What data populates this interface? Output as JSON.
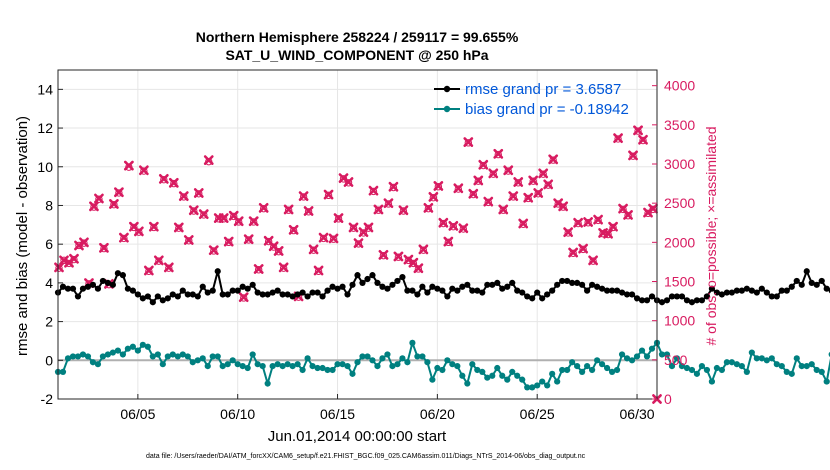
{
  "chart_data": {
    "type": "line",
    "title_line1": "Northern Hemisphere 258224 / 259117 = 99.655%",
    "title_line2": "SAT_U_WIND_COMPONENT @ 250 hPa",
    "xlabel": "Jun.01,2014 00:00:00 start",
    "ylabel_left": "rmse and bias (model - observation)",
    "ylabel_right": "# of obs: o=possible; ×=assimilated",
    "footnote": "data file: /Users/raeder/DAI/ATM_forcXX/CAM6_setup/f.e21.FHIST_BGC.f09_025.CAM6assim.011/Diags_NTrS_2014-06/obs_diag_output.nc",
    "xlim": [
      1.0,
      31.0
    ],
    "ylim_left": [
      -2,
      15
    ],
    "ylim_right": [
      0,
      4200
    ],
    "x_ticks": [
      {
        "value": 5,
        "label": "06/05"
      },
      {
        "value": 10,
        "label": "06/10"
      },
      {
        "value": 15,
        "label": "06/15"
      },
      {
        "value": 20,
        "label": "06/20"
      },
      {
        "value": 25,
        "label": "06/25"
      },
      {
        "value": 30,
        "label": "06/30"
      }
    ],
    "y_left_ticks": [
      {
        "value": -2,
        "label": "-2"
      },
      {
        "value": 0,
        "label": "0"
      },
      {
        "value": 2,
        "label": "2"
      },
      {
        "value": 4,
        "label": "4"
      },
      {
        "value": 6,
        "label": "6"
      },
      {
        "value": 8,
        "label": "8"
      },
      {
        "value": 10,
        "label": "10"
      },
      {
        "value": 12,
        "label": "12"
      },
      {
        "value": 14,
        "label": "14"
      }
    ],
    "y_right_ticks": [
      {
        "value": 0,
        "label": "0"
      },
      {
        "value": 500,
        "label": "500"
      },
      {
        "value": 1000,
        "label": "1000"
      },
      {
        "value": 1500,
        "label": "1500"
      },
      {
        "value": 2000,
        "label": "2000"
      },
      {
        "value": 2500,
        "label": "2500"
      },
      {
        "value": 3000,
        "label": "3000"
      },
      {
        "value": 3500,
        "label": "3500"
      },
      {
        "value": 4000,
        "label": "4000"
      }
    ],
    "legend": [
      {
        "name": "rmse grand pr = 3.6587",
        "color": "#000000"
      },
      {
        "name": "bias grand pr = -0.18942",
        "color": "#008080"
      }
    ],
    "colors": {
      "rmse": "#000000",
      "bias": "#008080",
      "obs": "#d81b60",
      "zero_line": "#b0b0b0",
      "legend_text": "#0057d9",
      "right_axis": "#d81b60"
    },
    "x_start": 1.0,
    "x_step": 0.25,
    "series": [
      {
        "name": "rmse",
        "values": [
          3.5,
          3.8,
          3.7,
          3.7,
          3.3,
          3.7,
          3.8,
          3.9,
          3.7,
          4.1,
          4.0,
          3.9,
          4.5,
          4.4,
          3.7,
          3.6,
          3.4,
          3.2,
          3.3,
          3.0,
          3.3,
          3.1,
          3.2,
          3.4,
          3.3,
          3.6,
          3.4,
          3.4,
          3.3,
          3.8,
          3.5,
          3.6,
          4.6,
          3.4,
          3.4,
          3.6,
          3.6,
          3.8,
          3.7,
          3.9,
          3.5,
          3.4,
          3.4,
          3.5,
          3.6,
          3.4,
          3.4,
          3.3,
          3.4,
          3.5,
          3.3,
          3.5,
          3.5,
          3.3,
          3.6,
          3.8,
          3.7,
          3.8,
          3.4,
          3.9,
          4.4,
          4.0,
          4.2,
          4.4,
          4.0,
          3.8,
          3.7,
          3.9,
          4.1,
          4.3,
          3.6,
          3.6,
          3.4,
          3.8,
          3.5,
          3.8,
          3.7,
          3.6,
          3.3,
          3.7,
          3.6,
          3.8,
          3.9,
          3.6,
          3.6,
          3.5,
          3.9,
          3.9,
          4.0,
          3.7,
          3.8,
          4.0,
          3.6,
          3.5,
          3.3,
          3.2,
          3.5,
          3.2,
          3.4,
          3.6,
          3.9,
          4.1,
          4.1,
          4.0,
          4.0,
          3.9,
          3.6,
          3.9,
          3.8,
          3.7,
          3.6,
          3.6,
          3.6,
          3.5,
          3.4,
          3.4,
          3.2,
          3.1,
          3.1,
          3.3,
          3.1,
          3.0,
          3.1,
          3.3,
          3.3,
          3.3,
          3.1,
          3.0,
          3.1,
          3.1,
          3.3,
          3.7,
          3.5,
          3.4,
          3.5,
          3.5,
          3.6,
          3.6,
          3.7,
          3.6,
          3.5,
          3.7,
          3.5,
          3.3,
          3.3,
          3.6,
          3.6,
          3.8,
          4.1,
          3.9,
          4.6,
          4.0,
          3.9,
          4.1,
          3.7,
          3.6,
          4.1,
          3.9,
          4.3,
          4.5,
          4.5,
          4.4,
          4.1,
          3.8,
          3.9,
          3.7,
          3.5,
          3.7,
          3.7,
          3.6,
          3.7
        ]
      },
      {
        "name": "bias",
        "values": [
          -0.6,
          -0.6,
          0.1,
          0.2,
          0.2,
          0.3,
          0.2,
          -0.1,
          -0.2,
          0.2,
          0.3,
          0.4,
          0.5,
          0.3,
          0.6,
          0.7,
          0.5,
          0.8,
          0.7,
          0.2,
          0.3,
          -0.2,
          0.2,
          0.3,
          0.2,
          0.3,
          0.2,
          -0.1,
          0.0,
          0.1,
          -0.3,
          0.2,
          0.2,
          -0.3,
          -0.2,
          0.0,
          -0.2,
          -0.3,
          -0.4,
          0.3,
          -0.2,
          -0.3,
          -1.2,
          -0.3,
          -0.2,
          -0.3,
          -0.2,
          -0.3,
          -0.2,
          -0.5,
          0.1,
          -0.3,
          -0.4,
          -0.4,
          -0.5,
          -0.5,
          -0.2,
          -0.2,
          -0.3,
          -0.7,
          -0.1,
          0.2,
          0.2,
          0.0,
          -0.3,
          0.1,
          0.3,
          -0.3,
          -0.2,
          0.1,
          -0.1,
          0.9,
          0.2,
          0.2,
          -0.1,
          -1.0,
          -0.4,
          -0.5,
          0.0,
          -0.2,
          -0.3,
          -0.8,
          -1.2,
          -0.2,
          -0.5,
          -0.6,
          -0.9,
          -0.8,
          -0.4,
          -0.8,
          -1.0,
          -0.6,
          -0.8,
          -1.0,
          -1.4,
          -1.4,
          -1.3,
          -1.1,
          -1.3,
          -0.7,
          -1.1,
          -0.5,
          -0.5,
          -0.1,
          -0.3,
          -0.6,
          -0.3,
          -0.5,
          0.0,
          -0.2,
          -0.4,
          -0.6,
          -0.5,
          0.3,
          0.1,
          0.0,
          0.2,
          0.5,
          0.2,
          0.6,
          0.9,
          0.3,
          0.3,
          -0.3,
          0.1,
          -0.3,
          -0.4,
          -0.5,
          -0.7,
          -0.3,
          -0.5,
          -1.1,
          -0.4,
          -0.5,
          -0.1,
          -0.1,
          -0.2,
          -0.3,
          -0.6,
          0.4,
          0.1,
          0.1,
          0.0,
          0.1,
          -0.2,
          -0.3,
          -0.6,
          -0.7,
          0.1,
          -0.3,
          -0.3,
          -0.2,
          -0.5,
          -0.6,
          -1.1,
          0.3,
          -0.3,
          -0.2,
          -0.6,
          -0.7,
          -0.6,
          -0.5,
          -0.3,
          -0.9,
          -0.5,
          -0.5,
          -0.6,
          -0.1,
          0.2,
          -0.1,
          -0.2,
          -0.1
        ]
      },
      {
        "name": "obs_possible",
        "x": [
          1.05,
          1.3,
          1.55,
          1.8,
          2.05,
          2.3,
          2.55,
          2.8,
          3.05,
          3.3,
          3.55,
          3.8,
          4.05,
          4.3,
          4.55,
          4.8,
          5.05,
          5.3,
          5.55,
          5.8,
          6.05,
          6.3,
          6.55,
          6.8,
          7.05,
          7.3,
          7.55,
          7.8,
          8.05,
          8.3,
          8.55,
          8.8,
          9.05,
          9.3,
          9.55,
          9.8,
          10.05,
          10.3,
          10.55,
          10.8,
          11.05,
          11.3,
          11.55,
          11.8,
          12.05,
          12.3,
          12.55,
          12.8,
          13.05,
          13.3,
          13.55,
          13.8,
          14.05,
          14.3,
          14.55,
          14.8,
          15.05,
          15.3,
          15.55,
          15.8,
          16.05,
          16.3,
          16.55,
          16.8,
          17.05,
          17.3,
          17.55,
          17.8,
          18.05,
          18.3,
          18.55,
          18.8,
          19.05,
          19.3,
          19.55,
          19.8,
          20.05,
          20.3,
          20.55,
          20.8,
          21.05,
          21.3,
          21.55,
          21.8,
          22.05,
          22.3,
          22.55,
          22.8,
          23.05,
          23.3,
          23.55,
          23.8,
          24.05,
          24.3,
          24.55,
          24.8,
          25.05,
          25.3,
          25.55,
          25.8,
          26.05,
          26.3,
          26.55,
          26.8,
          27.05,
          27.3,
          27.55,
          27.8,
          28.05,
          28.3,
          28.55,
          28.8,
          29.05,
          29.3,
          29.55,
          29.8,
          30.05,
          30.3,
          30.55,
          30.8
        ],
        "values": [
          1670,
          1770,
          1730,
          1780,
          1960,
          1990,
          1470,
          2450,
          2550,
          1920,
          1460,
          2480,
          2630,
          2050,
          2960,
          2190,
          2130,
          2910,
          1630,
          2190,
          1760,
          2800,
          1670,
          2750,
          2180,
          2580,
          2020,
          2400,
          2620,
          2350,
          3030,
          1890,
          2300,
          2300,
          2000,
          2330,
          2260,
          1290,
          2030,
          2260,
          1650,
          2430,
          2010,
          1940,
          1880,
          1670,
          2410,
          2150,
          1300,
          2580,
          2390,
          1900,
          1630,
          2050,
          2600,
          2040,
          2300,
          2810,
          2760,
          2180,
          1980,
          2120,
          2180,
          2650,
          2410,
          1830,
          2490,
          2700,
          1810,
          2400,
          1770,
          1730,
          1660,
          1900,
          2430,
          2570,
          2710,
          2240,
          2000,
          2200,
          2680,
          2170,
          3270,
          2610,
          2780,
          2980,
          2510,
          2870,
          3120,
          2410,
          2910,
          2580,
          2760,
          2230,
          2560,
          2780,
          2620,
          2870,
          2730,
          3050,
          2490,
          2450,
          2120,
          1860,
          2240,
          1910,
          2250,
          1760,
          2280,
          2110,
          2100,
          2190,
          3320,
          2420,
          2340,
          3100,
          3420,
          3300,
          2370,
          2420
        ]
      },
      {
        "name": "obs_assimilated",
        "x": [
          1.05,
          1.3,
          1.55,
          1.8,
          2.05,
          2.3,
          2.55,
          2.8,
          3.05,
          3.3,
          3.55,
          3.8,
          4.05,
          4.3,
          4.55,
          4.8,
          5.05,
          5.3,
          5.55,
          5.8,
          6.05,
          6.3,
          6.55,
          6.8,
          7.05,
          7.3,
          7.55,
          7.8,
          8.05,
          8.3,
          8.55,
          8.8,
          9.05,
          9.3,
          9.55,
          9.8,
          10.05,
          10.3,
          10.55,
          10.8,
          11.05,
          11.3,
          11.55,
          11.8,
          12.05,
          12.3,
          12.55,
          12.8,
          13.05,
          13.3,
          13.55,
          13.8,
          14.05,
          14.3,
          14.55,
          14.8,
          15.05,
          15.3,
          15.55,
          15.8,
          16.05,
          16.3,
          16.55,
          16.8,
          17.05,
          17.3,
          17.55,
          17.8,
          18.05,
          18.3,
          18.55,
          18.8,
          19.05,
          19.3,
          19.55,
          19.8,
          20.05,
          20.3,
          20.55,
          20.8,
          21.05,
          21.3,
          21.55,
          21.8,
          22.05,
          22.3,
          22.55,
          22.8,
          23.05,
          23.3,
          23.55,
          23.8,
          24.05,
          24.3,
          24.55,
          24.8,
          25.05,
          25.3,
          25.55,
          25.8,
          26.05,
          26.3,
          26.55,
          26.8,
          27.05,
          27.3,
          27.55,
          27.8,
          28.05,
          28.3,
          28.55,
          28.8,
          29.05,
          29.3,
          29.55,
          29.8,
          30.05,
          30.3,
          30.55,
          30.8,
          31.0
        ],
        "values": [
          1680,
          1770,
          1740,
          1790,
          1960,
          2000,
          1480,
          2460,
          2560,
          1930,
          1470,
          2490,
          2640,
          2060,
          2980,
          2200,
          2140,
          2920,
          1640,
          2200,
          1770,
          2810,
          1680,
          2760,
          2190,
          2590,
          2030,
          2410,
          2630,
          2360,
          3050,
          1900,
          2310,
          2310,
          2010,
          2340,
          2270,
          1300,
          2040,
          2270,
          1660,
          2440,
          2020,
          1950,
          1890,
          1680,
          2420,
          2160,
          1310,
          2590,
          2400,
          1910,
          1640,
          2060,
          2610,
          2050,
          2310,
          2820,
          2770,
          2190,
          1990,
          2130,
          2190,
          2660,
          2420,
          1840,
          2500,
          2710,
          1820,
          2410,
          1780,
          1740,
          1670,
          1910,
          2440,
          2580,
          2720,
          2250,
          2010,
          2210,
          2690,
          2180,
          3280,
          2620,
          2790,
          2990,
          2520,
          2880,
          3130,
          2420,
          2920,
          2590,
          2770,
          2240,
          2570,
          2790,
          2630,
          2880,
          2740,
          3060,
          2500,
          2460,
          2130,
          1870,
          2250,
          1920,
          2260,
          1770,
          2290,
          2120,
          2110,
          2200,
          3330,
          2430,
          2350,
          3110,
          3430,
          3310,
          2380,
          2430,
          0
        ]
      }
    ]
  }
}
